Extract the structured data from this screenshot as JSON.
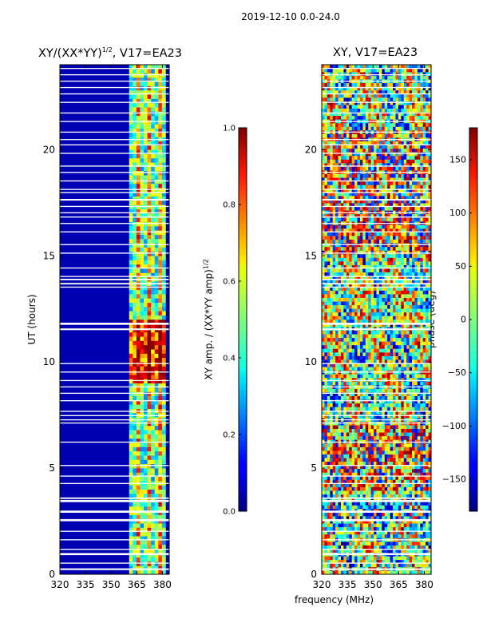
{
  "figure": {
    "suptitle": "2019-12-10 0.0-24.0",
    "xlabel": "frequency (MHz)",
    "ylabel": "UT (hours)"
  },
  "chart_data": [
    {
      "type": "heatmap",
      "title_prefix": "XY/(XX*YY)",
      "title_sup": "1/2",
      "title_suffix": ", V17=EA23",
      "xlim": [
        320,
        384
      ],
      "ylim": [
        0,
        24
      ],
      "xticks": [
        320,
        335,
        350,
        365,
        380
      ],
      "yticks": [
        0,
        5,
        10,
        15,
        20
      ],
      "colormap": "jet",
      "colorbar": {
        "label_prefix": "XY amp. / (XX*YY amp)",
        "label_sup": "1/2",
        "vmin": 0.0,
        "vmax": 1.0,
        "ticks": [
          "0.0",
          "0.2",
          "0.4",
          "0.6",
          "0.8",
          "1.0"
        ]
      },
      "high_band_mhz": [
        360,
        381
      ],
      "dominant_value": 0.05,
      "band_value": 0.45
    },
    {
      "type": "heatmap",
      "title": "XY, V17=EA23",
      "xlim": [
        320,
        384
      ],
      "ylim": [
        0,
        24
      ],
      "xticks": [
        320,
        335,
        350,
        365,
        380
      ],
      "yticks": [
        0,
        5,
        10,
        15,
        20
      ],
      "colormap": "jet",
      "colorbar": {
        "label": "phase (deg)",
        "vmin": -180,
        "vmax": 180,
        "ticks": [
          "−150",
          "−100",
          "−50",
          "0",
          "50",
          "100",
          "150"
        ]
      }
    }
  ],
  "flagged_ut_intervals": [
    [
      0.2,
      0.28
    ],
    [
      0.5,
      0.55
    ],
    [
      0.9,
      1.0
    ],
    [
      1.15,
      1.2
    ],
    [
      1.6,
      1.65
    ],
    [
      2.0,
      2.05
    ],
    [
      2.5,
      2.6
    ],
    [
      2.9,
      3.0
    ],
    [
      3.4,
      3.5
    ],
    [
      3.55,
      3.62
    ],
    [
      4.25,
      4.3
    ],
    [
      4.6,
      4.65
    ],
    [
      5.1,
      5.15
    ],
    [
      6.2,
      6.25
    ],
    [
      7.1,
      7.15
    ],
    [
      7.25,
      7.3
    ],
    [
      7.45,
      7.5
    ],
    [
      7.65,
      7.7
    ],
    [
      8.15,
      8.2
    ],
    [
      8.5,
      8.55
    ],
    [
      8.8,
      8.85
    ],
    [
      9.1,
      9.15
    ],
    [
      9.5,
      9.55
    ],
    [
      9.9,
      9.95
    ],
    [
      11.5,
      11.58
    ],
    [
      11.75,
      11.85
    ],
    [
      13.5,
      13.55
    ],
    [
      13.65,
      13.72
    ],
    [
      13.85,
      13.92
    ],
    [
      14.0,
      14.05
    ],
    [
      14.4,
      14.45
    ],
    [
      15.1,
      15.15
    ],
    [
      15.5,
      15.55
    ],
    [
      16.1,
      16.15
    ],
    [
      16.5,
      16.55
    ],
    [
      16.8,
      16.85
    ],
    [
      17.0,
      17.05
    ],
    [
      17.3,
      17.35
    ],
    [
      17.6,
      17.68
    ],
    [
      17.95,
      18.0
    ],
    [
      18.1,
      18.15
    ],
    [
      18.5,
      18.55
    ],
    [
      18.9,
      18.95
    ],
    [
      19.2,
      19.25
    ],
    [
      19.8,
      19.85
    ],
    [
      20.2,
      20.25
    ],
    [
      20.45,
      20.5
    ],
    [
      20.8,
      20.85
    ],
    [
      21.3,
      21.35
    ],
    [
      21.7,
      21.75
    ],
    [
      22.2,
      22.25
    ],
    [
      22.6,
      22.65
    ],
    [
      22.9,
      22.95
    ],
    [
      23.2,
      23.25
    ],
    [
      23.5,
      23.55
    ],
    [
      23.8,
      23.85
    ]
  ]
}
